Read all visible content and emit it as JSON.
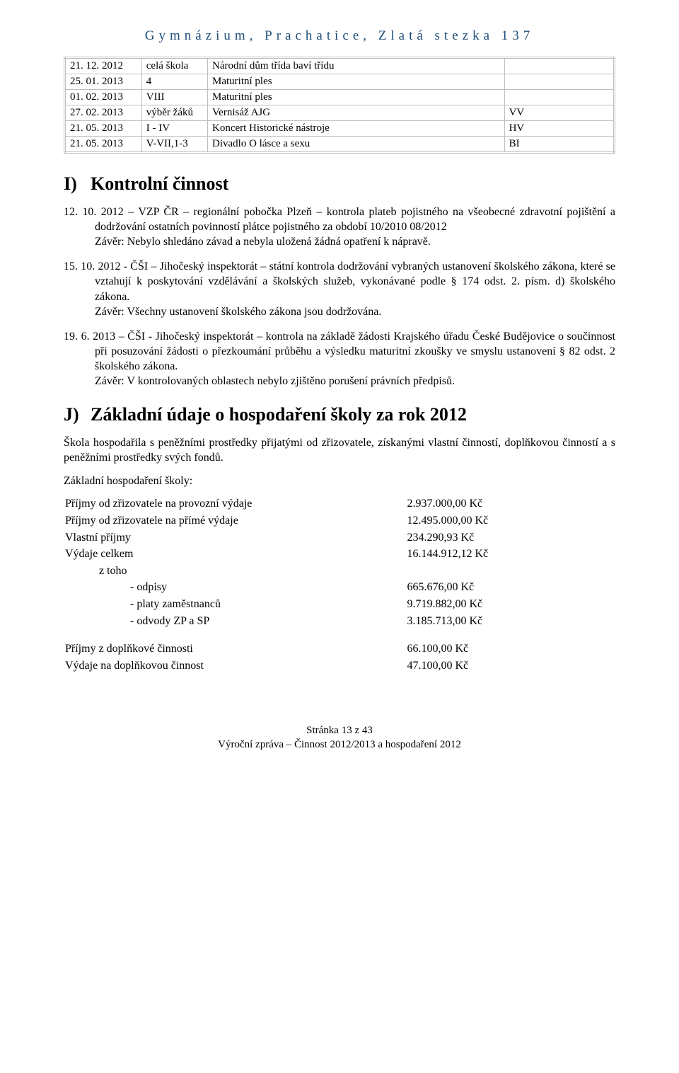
{
  "header": "Gymnázium, Prachatice, Zlatá stezka 137",
  "schedule": {
    "rows": [
      {
        "date": "21. 12. 2012",
        "group": "celá škola",
        "event": "Národní dům třída baví třídu",
        "note": ""
      },
      {
        "date": "25. 01. 2013",
        "group": "4",
        "event": "Maturitní ples",
        "note": ""
      },
      {
        "date": "01. 02. 2013",
        "group": "VIII",
        "event": "Maturitní ples",
        "note": ""
      },
      {
        "date": "27. 02. 2013",
        "group": "výběr žáků",
        "event": "Vernisáž AJG",
        "note": "VV"
      },
      {
        "date": "21. 05. 2013",
        "group": "I - IV",
        "event": "Koncert Historické nástroje",
        "note": "HV"
      },
      {
        "date": "21. 05. 2013",
        "group": "V-VII,1-3",
        "event": "Divadlo O lásce a sexu",
        "note": "BI"
      }
    ]
  },
  "sectionI": {
    "letter": "I)",
    "title": "Kontrolní činnost",
    "p1": "12. 10. 2012 – VZP ČR – regionální pobočka Plzeň – kontrola plateb pojistného na všeobecné zdravotní pojištění a dodržování ostatních povinností plátce pojistného za období 10/2010 08/2012",
    "p1z": "Závěr: Nebylo shledáno závad a nebyla uložená žádná opatření k nápravě.",
    "p2": "15. 10. 2012 - ČŠI – Jihočeský inspektorát – státní kontrola dodržování vybraných ustanovení školského zákona, které se vztahují k poskytování vzdělávání a školských služeb, vykonávané podle § 174 odst. 2. písm. d) školského zákona.",
    "p2z": "Závěr: Všechny ustanovení školského zákona jsou dodržována.",
    "p3": "19. 6. 2013 – ČŠI - Jihočeský inspektorát – kontrola na základě žádosti Krajského úřadu České Budějovice o součinnost při posuzování žádosti o přezkoumání průběhu a výsledku maturitní zkoušky ve smyslu ustanovení § 82 odst. 2 školského zákona.",
    "p3z": "Závěr: V kontrolovaných oblastech nebylo zjištěno porušení právních předpisů."
  },
  "sectionJ": {
    "letter": "J)",
    "title": "Základní údaje o hospodaření školy za rok 2012",
    "intro": "Škola hospodařila s peněžními prostředky přijatými od zřizovatele, získanými vlastní činností, doplňkovou činností a s peněžními prostředky svých fondů.",
    "sub": "Základní hospodaření školy:",
    "rows": [
      {
        "label": "Příjmy od zřizovatele na provozní výdaje",
        "value": "2.937.000,00 Kč",
        "indent": 0
      },
      {
        "label": "Příjmy od zřizovatele na přímé výdaje",
        "value": "12.495.000,00 Kč",
        "indent": 0
      },
      {
        "label": "Vlastní příjmy",
        "value": "234.290,93 Kč",
        "indent": 0
      },
      {
        "label": "Výdaje celkem",
        "value": "16.144.912,12 Kč",
        "indent": 0
      },
      {
        "label": "z toho",
        "value": "",
        "indent": 1
      },
      {
        "label": "- odpisy",
        "value": "665.676,00 Kč",
        "indent": 2
      },
      {
        "label": "- platy zaměstnanců",
        "value": "9.719.882,00 Kč",
        "indent": 2
      },
      {
        "label": "- odvody ZP a SP",
        "value": "3.185.713,00 Kč",
        "indent": 2
      }
    ],
    "rows2": [
      {
        "label": "Příjmy z doplňkové činnosti",
        "value": "66.100,00 Kč",
        "indent": 0
      },
      {
        "label": "Výdaje na doplňkovou činnost",
        "value": "47.100,00 Kč",
        "indent": 0
      }
    ]
  },
  "footer": {
    "l1": "Stránka 13 z 43",
    "l2": "Výroční zpráva – Činnost 2012/2013 a hospodaření 2012"
  }
}
